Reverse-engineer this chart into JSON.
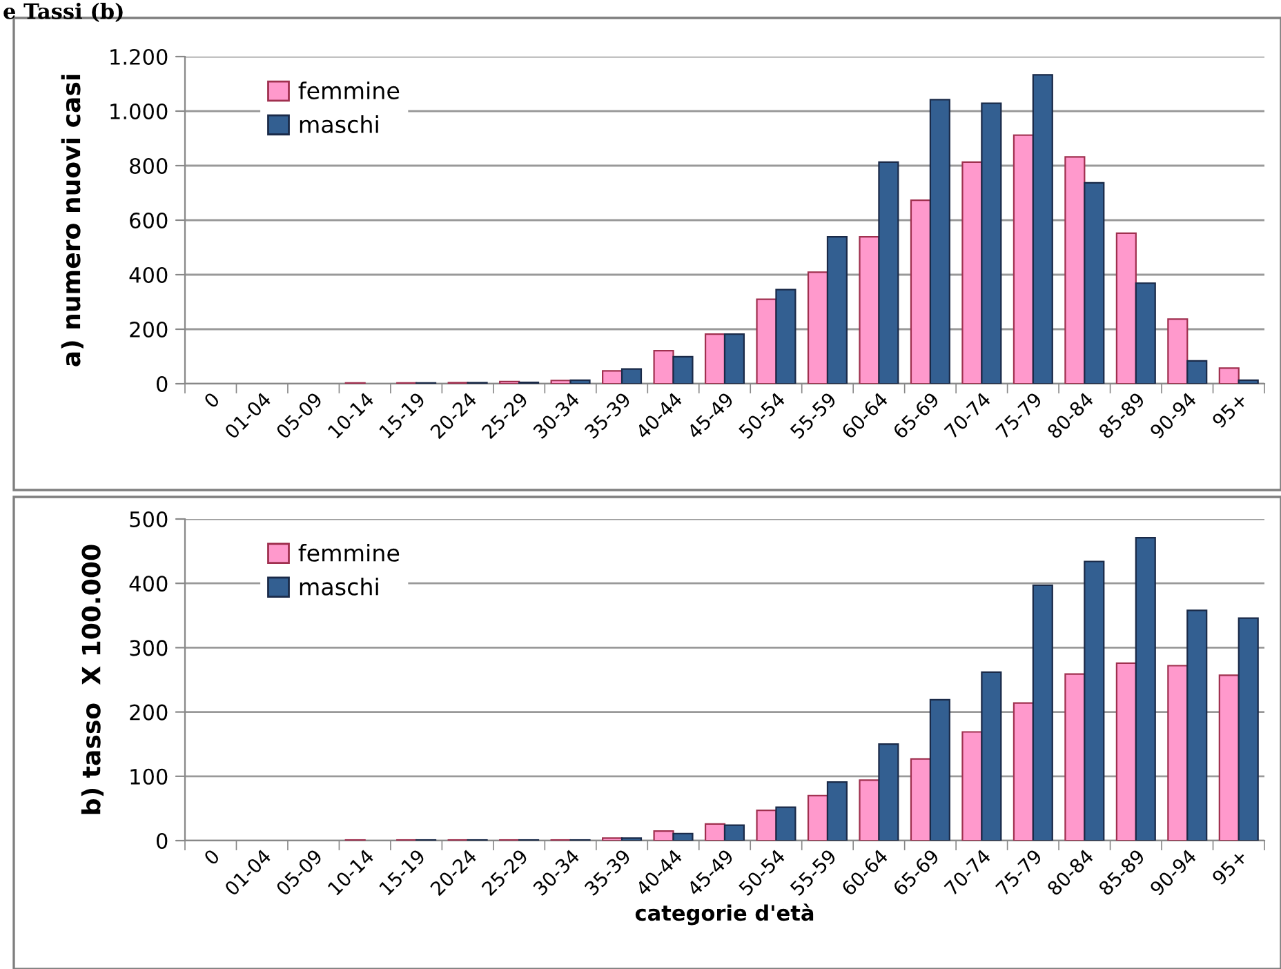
{
  "chart_data": [
    {
      "type": "bar",
      "title": "e Tassi (b)",
      "ylabel": "a) numero nuovi casi",
      "categories": [
        "0",
        "01-04",
        "05-09",
        "10-14",
        "15-19",
        "20-24",
        "25-29",
        "30-34",
        "35-39",
        "40-44",
        "45-49",
        "50-54",
        "55-59",
        "60-64",
        "65-69",
        "70-74",
        "75-79",
        "80-84",
        "85-89",
        "90-94",
        "95+"
      ],
      "series": [
        {
          "name": "femmine",
          "color": "#ff99cc",
          "values": [
            0,
            0,
            0,
            3,
            3,
            4,
            8,
            12,
            47,
            121,
            182,
            310,
            409,
            539,
            673,
            813,
            912,
            832,
            552,
            237,
            57
          ]
        },
        {
          "name": "maschi",
          "color": "#335f91",
          "values": [
            0,
            0,
            0,
            0,
            3,
            4,
            5,
            13,
            54,
            99,
            182,
            345,
            539,
            813,
            1042,
            1029,
            1133,
            737,
            369,
            84,
            13
          ]
        }
      ],
      "ylim": [
        0,
        1200
      ],
      "yticks": [
        0,
        200,
        400,
        600,
        800,
        {
          "value": 1000,
          "label": "1.000"
        },
        {
          "value": 1200,
          "label": "1.200"
        }
      ],
      "grid": "y",
      "legend": "top left"
    },
    {
      "type": "bar",
      "ylabel": "b) tasso  X 100.000",
      "xlabel": "categorie d'età",
      "categories": [
        "0",
        "01-04",
        "05-09",
        "10-14",
        "15-19",
        "20-24",
        "25-29",
        "30-34",
        "35-39",
        "40-44",
        "45-49",
        "50-54",
        "55-59",
        "60-64",
        "65-69",
        "70-74",
        "75-79",
        "80-84",
        "85-89",
        "90-94",
        "95+"
      ],
      "series": [
        {
          "name": "femmine",
          "color": "#ff99cc",
          "values": [
            0,
            0,
            0,
            1,
            1,
            1,
            1,
            1,
            4,
            15,
            26,
            47,
            70,
            94,
            127,
            169,
            214,
            259,
            276,
            272,
            257
          ]
        },
        {
          "name": "maschi",
          "color": "#335f91",
          "values": [
            0,
            0,
            0,
            0,
            1,
            1,
            1,
            1,
            4,
            11,
            24,
            52,
            91,
            150,
            219,
            262,
            397,
            434,
            471,
            358,
            346
          ]
        }
      ],
      "ylim": [
        0,
        500
      ],
      "yticks": [
        0,
        100,
        200,
        300,
        400,
        500
      ],
      "grid": "y",
      "legend": "top left"
    }
  ]
}
